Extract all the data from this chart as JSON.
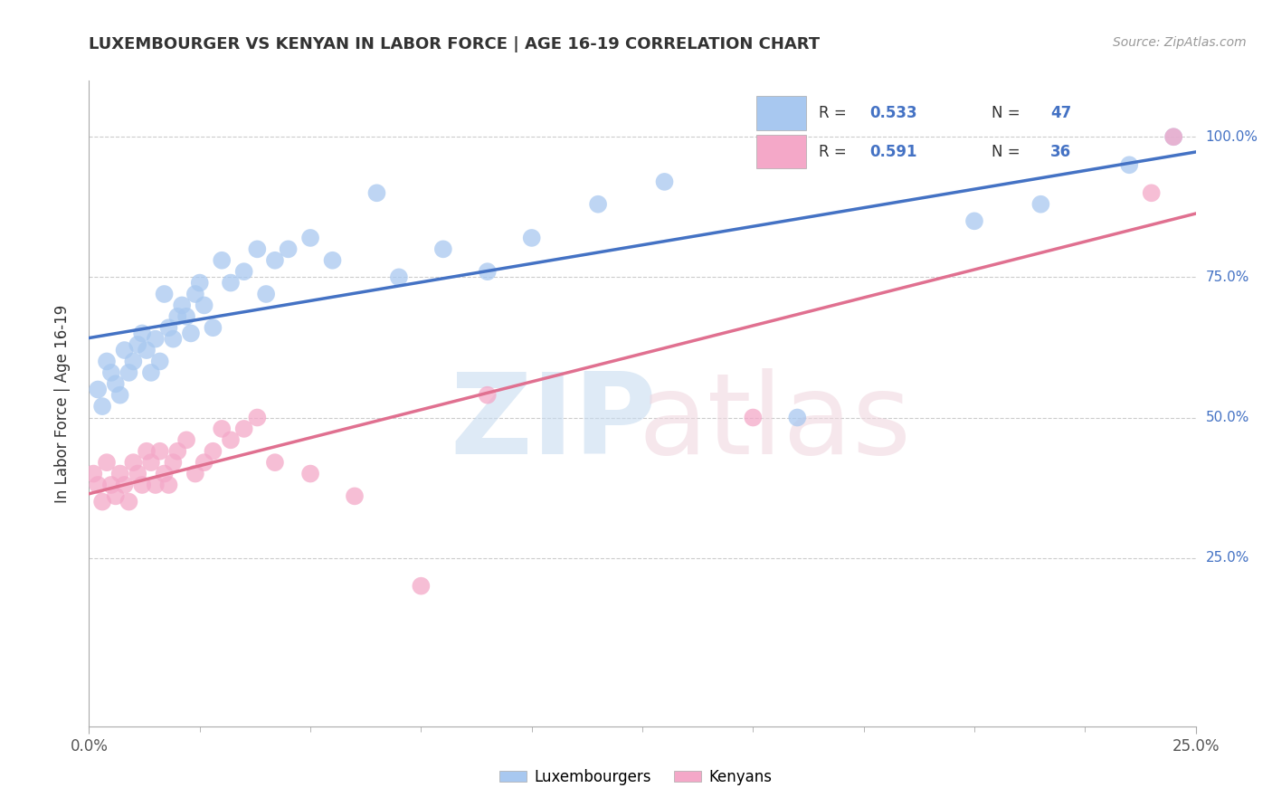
{
  "title": "LUXEMBOURGER VS KENYAN IN LABOR FORCE | AGE 16-19 CORRELATION CHART",
  "source": "Source: ZipAtlas.com",
  "ylabel": "In Labor Force | Age 16-19",
  "xlim": [
    0.0,
    0.25
  ],
  "ylim": [
    -0.05,
    1.1
  ],
  "blue_color": "#A8C8F0",
  "pink_color": "#F4A8C8",
  "blue_line_color": "#4472C4",
  "pink_line_color": "#E07090",
  "grid_color": "#CCCCCC",
  "bg_color": "#FFFFFF",
  "blue_points_x": [
    0.002,
    0.003,
    0.004,
    0.005,
    0.006,
    0.007,
    0.008,
    0.009,
    0.01,
    0.011,
    0.012,
    0.013,
    0.014,
    0.015,
    0.016,
    0.017,
    0.018,
    0.019,
    0.02,
    0.021,
    0.022,
    0.023,
    0.024,
    0.025,
    0.026,
    0.028,
    0.03,
    0.032,
    0.035,
    0.038,
    0.04,
    0.042,
    0.045,
    0.05,
    0.055,
    0.065,
    0.07,
    0.08,
    0.09,
    0.1,
    0.115,
    0.13,
    0.16,
    0.2,
    0.215,
    0.235,
    0.245
  ],
  "blue_points_y": [
    0.55,
    0.52,
    0.6,
    0.58,
    0.56,
    0.54,
    0.62,
    0.58,
    0.6,
    0.63,
    0.65,
    0.62,
    0.58,
    0.64,
    0.6,
    0.72,
    0.66,
    0.64,
    0.68,
    0.7,
    0.68,
    0.65,
    0.72,
    0.74,
    0.7,
    0.66,
    0.78,
    0.74,
    0.76,
    0.8,
    0.72,
    0.78,
    0.8,
    0.82,
    0.78,
    0.9,
    0.75,
    0.8,
    0.76,
    0.82,
    0.88,
    0.92,
    0.5,
    0.85,
    0.88,
    0.95,
    1.0
  ],
  "pink_points_x": [
    0.001,
    0.002,
    0.003,
    0.004,
    0.005,
    0.006,
    0.007,
    0.008,
    0.009,
    0.01,
    0.011,
    0.012,
    0.013,
    0.014,
    0.015,
    0.016,
    0.017,
    0.018,
    0.019,
    0.02,
    0.022,
    0.024,
    0.026,
    0.028,
    0.03,
    0.032,
    0.035,
    0.038,
    0.042,
    0.05,
    0.06,
    0.075,
    0.09,
    0.15,
    0.24,
    0.245
  ],
  "pink_points_y": [
    0.4,
    0.38,
    0.35,
    0.42,
    0.38,
    0.36,
    0.4,
    0.38,
    0.35,
    0.42,
    0.4,
    0.38,
    0.44,
    0.42,
    0.38,
    0.44,
    0.4,
    0.38,
    0.42,
    0.44,
    0.46,
    0.4,
    0.42,
    0.44,
    0.48,
    0.46,
    0.48,
    0.5,
    0.42,
    0.4,
    0.36,
    0.2,
    0.54,
    0.5,
    0.9,
    1.0
  ],
  "watermark_zip_color": "#C8DCF0",
  "watermark_atlas_color": "#F0D8E0"
}
